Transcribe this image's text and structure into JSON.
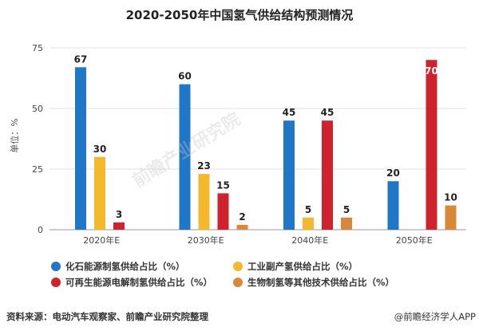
{
  "chart_data": {
    "type": "bar",
    "title": "2020-2050年中国氢气供给结构预测情况",
    "ylabel": "单位：%",
    "categories": [
      "2020年E",
      "2030年E",
      "2040年E",
      "2050年E"
    ],
    "ylim": [
      0,
      75
    ],
    "yticks": [
      0,
      25,
      50,
      75
    ],
    "grid": true,
    "legend_position": "bottom",
    "series": [
      {
        "name": "化石能源制氢供给占比（%）",
        "color": "#1f77c8",
        "values": [
          67,
          60,
          45,
          20
        ]
      },
      {
        "name": "工业副产氢供给占比（%）",
        "color": "#f3b82c",
        "values": [
          30,
          23,
          5,
          null
        ]
      },
      {
        "name": "可再生能源电解制氢供给占比（%）",
        "color": "#d0222c",
        "values": [
          3,
          15,
          45,
          70
        ]
      },
      {
        "name": "生物制氢等其他技术供给占比（%）",
        "color": "#d98838",
        "values": [
          null,
          2,
          5,
          10
        ]
      }
    ]
  },
  "footer": {
    "source": "资料来源：电动汽车观察家、前瞻产业研究院整理",
    "brand": "@前瞻经济学人APP"
  },
  "watermark": "前瞻产业研究院"
}
